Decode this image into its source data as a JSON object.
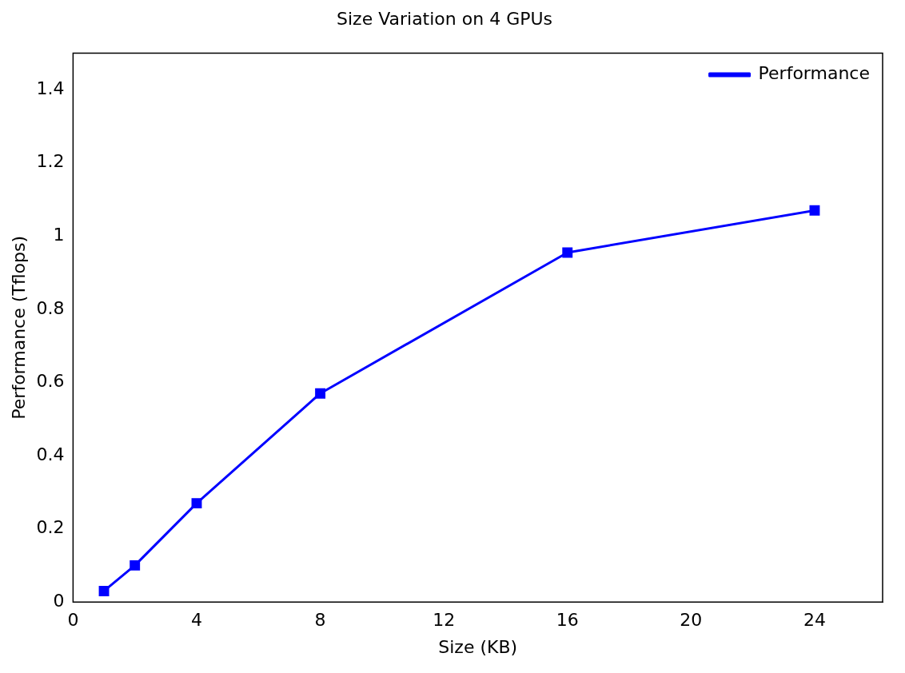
{
  "chart_data": {
    "type": "line",
    "title": "Size Variation on 4 GPUs",
    "xlabel": "Size (KB)",
    "ylabel": "Performance (Tflops)",
    "x": [
      1,
      2,
      4,
      8,
      16,
      24
    ],
    "series": [
      {
        "name": "Performance",
        "color": "#0000ff",
        "values": [
          0.03,
          0.1,
          0.27,
          0.57,
          0.955,
          1.07
        ]
      }
    ],
    "xlim": [
      0,
      26.2
    ],
    "xticks": [
      0,
      4,
      8,
      12,
      16,
      20,
      24
    ],
    "ylim": [
      0,
      1.5
    ],
    "yticks": [
      0,
      0.2,
      0.4,
      0.6,
      0.8,
      1,
      1.2,
      1.4
    ],
    "grid": false,
    "legend": "top right",
    "marker": "square",
    "line_style": "solid"
  }
}
